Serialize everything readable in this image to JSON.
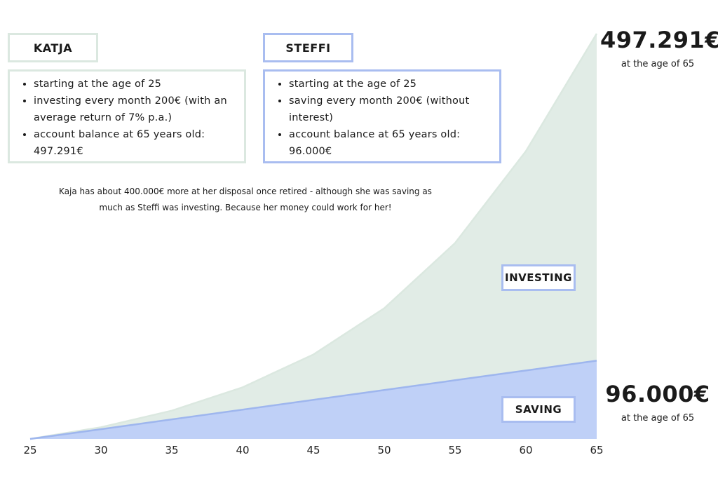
{
  "katja": {
    "title": "KATJA",
    "bullets": [
      "starting at the age of 25",
      "investing every month 200€ (with an average return of 7% p.a.)",
      "account balance at 65 years old: 497.291€"
    ]
  },
  "steffi": {
    "title": "STEFFI",
    "bullets": [
      "starting at the age of 25",
      "saving every month 200€ (without interest)",
      "account balance at 65 years old: 96.000€"
    ]
  },
  "note": "Kaja has about 400.000€ more at her disposal once retired - although she was saving as much as Steffi was investing. Because her money could work for her!",
  "totals": {
    "investing": {
      "value": "497.291€",
      "sub": "at the age of 65"
    },
    "saving": {
      "value": "96.000€",
      "sub": "at the age of 65"
    }
  },
  "colors": {
    "investing": "#e1ece6",
    "investing_line": "#dbe8e0",
    "saving": "#bfd0f7",
    "saving_line": "#9eb6ee"
  },
  "chart_data": {
    "type": "area",
    "x": [
      25,
      30,
      35,
      40,
      45,
      50,
      55,
      60,
      65
    ],
    "series": [
      {
        "name": "INVESTING",
        "values": [
          0,
          14400,
          34700,
          63300,
          103600,
          160300,
          240300,
          353000,
          497291
        ]
      },
      {
        "name": "SAVING",
        "values": [
          0,
          12000,
          24000,
          36000,
          48000,
          60000,
          72000,
          84000,
          96000
        ]
      }
    ],
    "xlim": [
      25,
      65
    ],
    "ylim": [
      0,
      497291
    ],
    "grid": false
  }
}
